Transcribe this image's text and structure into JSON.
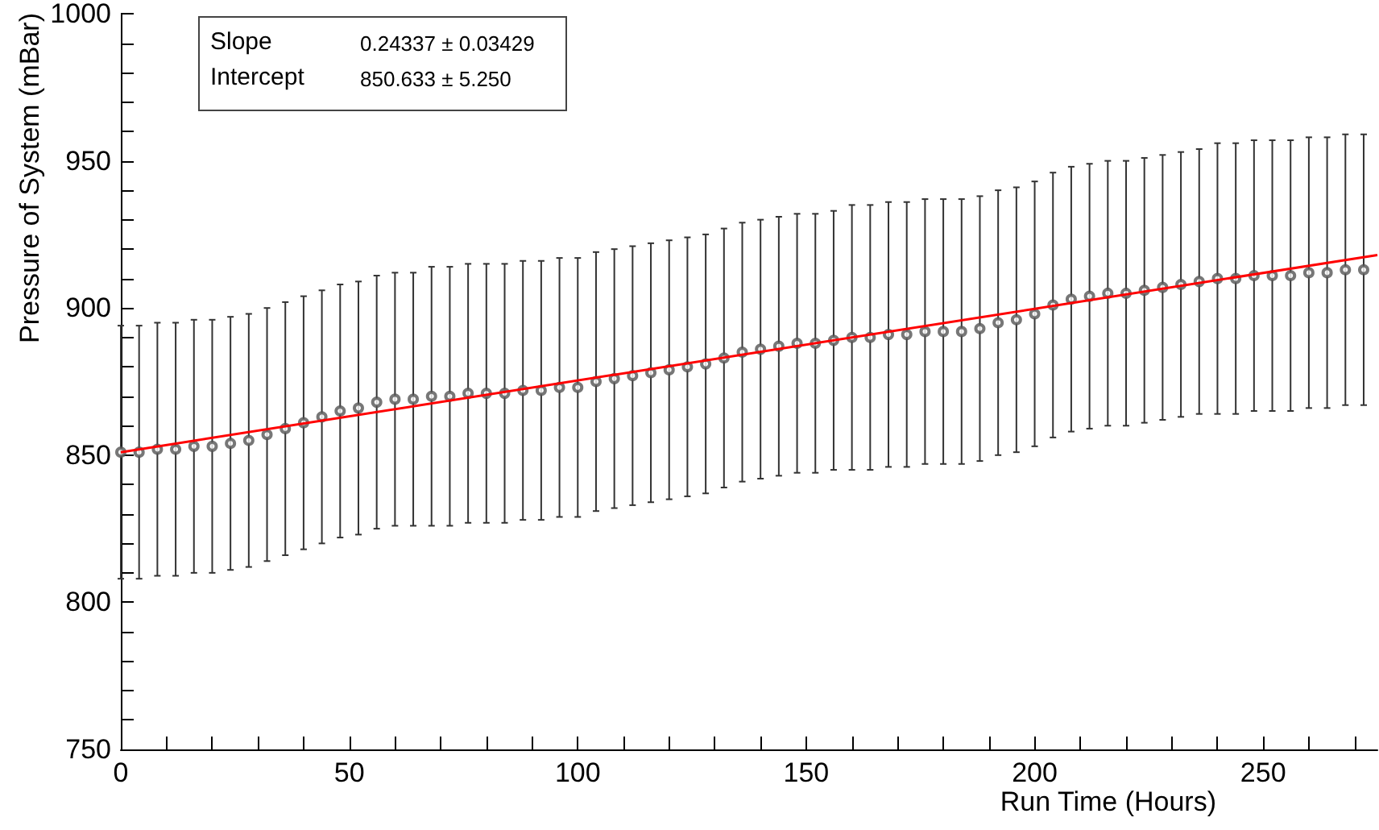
{
  "chart_data": {
    "type": "scatter",
    "xlabel": "Run Time (Hours)",
    "ylabel": "Pressure of System (mBar)",
    "annotations": [
      "Slope 0.24337 ± 0.03429",
      "Intercept 850.633 ± 5.250"
    ],
    "xlim": [
      0,
      275
    ],
    "ylim": [
      750,
      1000
    ],
    "xticks": [
      0,
      {
        "value": 10,
        "label": null
      },
      {
        "value": 20,
        "label": null
      },
      {
        "value": 30,
        "label": null
      },
      {
        "value": 40,
        "label": null
      },
      50,
      {
        "value": 60,
        "label": null
      },
      {
        "value": 70,
        "label": null
      },
      {
        "value": 80,
        "label": null
      },
      {
        "value": 90,
        "label": null
      },
      100,
      {
        "value": 110,
        "label": null
      },
      {
        "value": 120,
        "label": null
      },
      {
        "value": 130,
        "label": null
      },
      {
        "value": 140,
        "label": null
      },
      150,
      {
        "value": 160,
        "label": null
      },
      {
        "value": 170,
        "label": null
      },
      {
        "value": 180,
        "label": null
      },
      {
        "value": 190,
        "label": null
      },
      200,
      {
        "value": 210,
        "label": null
      },
      {
        "value": 220,
        "label": null
      },
      {
        "value": 230,
        "label": null
      },
      {
        "value": 240,
        "label": null
      },
      250,
      {
        "value": 260,
        "label": null
      },
      {
        "value": 270,
        "label": null
      }
    ],
    "yticks": [
      750,
      {
        "value": 760,
        "label": null
      },
      {
        "value": 770,
        "label": null
      },
      {
        "value": 780,
        "label": null
      },
      {
        "value": 790,
        "label": null
      },
      800,
      {
        "value": 810,
        "label": null
      },
      {
        "value": 820,
        "label": null
      },
      {
        "value": 830,
        "label": null
      },
      {
        "value": 840,
        "label": null
      },
      850,
      {
        "value": 860,
        "label": null
      },
      {
        "value": 870,
        "label": null
      },
      {
        "value": 880,
        "label": null
      },
      {
        "value": 890,
        "label": null
      },
      900,
      {
        "value": 910,
        "label": null
      },
      {
        "value": 920,
        "label": null
      },
      {
        "value": 930,
        "label": null
      },
      {
        "value": 940,
        "label": null
      },
      950,
      {
        "value": 960,
        "label": null
      },
      {
        "value": 970,
        "label": null
      },
      {
        "value": 980,
        "label": null
      },
      {
        "value": 990,
        "label": null
      },
      1000
    ],
    "marker": "circle",
    "grid": false,
    "series": [
      {
        "color": "#555555",
        "x": [
          0,
          4,
          8,
          12,
          16,
          20,
          24,
          28,
          32,
          36,
          40,
          44,
          48,
          52,
          56,
          60,
          64,
          68,
          72,
          76,
          80,
          84,
          88,
          92,
          96,
          100,
          104,
          108,
          112,
          116,
          120,
          124,
          128,
          132,
          136,
          140,
          144,
          148,
          152,
          156,
          160,
          164,
          168,
          172,
          176,
          180,
          184,
          188,
          192,
          196,
          200,
          204,
          208,
          212,
          216,
          220,
          224,
          228,
          232,
          236,
          240,
          244,
          248,
          252,
          256,
          260,
          264,
          268,
          272
        ],
        "values": [
          851,
          851,
          852,
          852,
          853,
          853,
          854,
          855,
          857,
          859,
          861,
          863,
          865,
          866,
          868,
          869,
          869,
          870,
          870,
          871,
          871,
          871,
          872,
          872,
          873,
          873,
          875,
          876,
          877,
          878,
          879,
          880,
          881,
          883,
          885,
          886,
          887,
          888,
          888,
          889,
          890,
          890,
          891,
          891,
          892,
          892,
          892,
          893,
          895,
          896,
          898,
          901,
          903,
          904,
          905,
          905,
          906,
          907,
          908,
          909,
          910,
          910,
          911,
          911,
          911,
          912,
          912,
          913,
          913
        ],
        "errors": [
          43,
          43,
          43,
          43,
          43,
          43,
          43,
          43,
          43,
          43,
          43,
          43,
          43,
          43,
          43,
          43,
          43,
          44,
          44,
          44,
          44,
          44,
          44,
          44,
          44,
          44,
          44,
          44,
          44,
          44,
          44,
          44,
          44,
          44,
          44,
          44,
          44,
          44,
          44,
          44,
          45,
          45,
          45,
          45,
          45,
          45,
          45,
          45,
          45,
          45,
          45,
          45,
          45,
          45,
          45,
          45,
          45,
          45,
          45,
          45,
          46,
          46,
          46,
          46,
          46,
          46,
          46,
          46,
          46
        ]
      },
      {
        "type": "line",
        "color": "#ff0000",
        "marker": "none",
        "x": [
          0,
          275
        ],
        "values": [
          851,
          918
        ]
      }
    ]
  }
}
